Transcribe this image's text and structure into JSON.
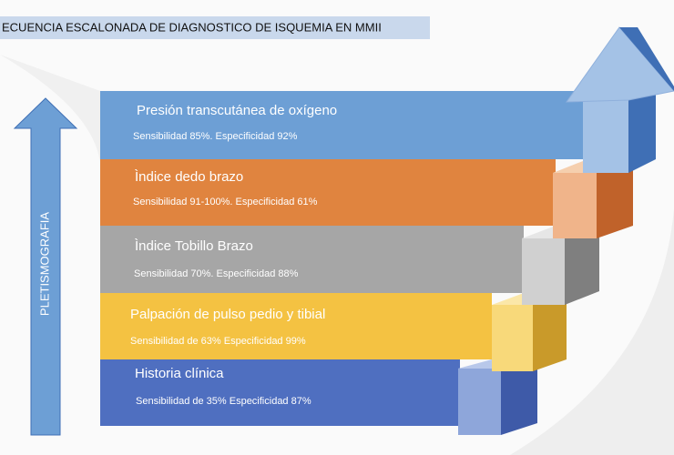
{
  "header": {
    "title": "ECUENCIA ESCALONADA DE DIAGNOSTICO DE ISQUEMIA EN MMII"
  },
  "side_label": "PLETISMOGRAFIA",
  "steps": [
    {
      "title": "Presión transcutánea de oxígeno",
      "detail": "Sensibilidad 85%. Especificidad 92%"
    },
    {
      "title": "Ìndice dedo brazo",
      "detail": "Sensibilidad 91-100%. Especificidad 61%"
    },
    {
      "title": "Ìndice Tobillo Brazo",
      "detail": "Sensibilidad 70%. Especificidad 88%"
    },
    {
      "title": "Palpación de pulso pedio y tibial",
      "detail": "Sensibilidad de 63%  Especificidad 99%"
    },
    {
      "title": "Historia clínica",
      "detail": "Sensibilidad de 35%  Especificidad 87%"
    }
  ]
}
